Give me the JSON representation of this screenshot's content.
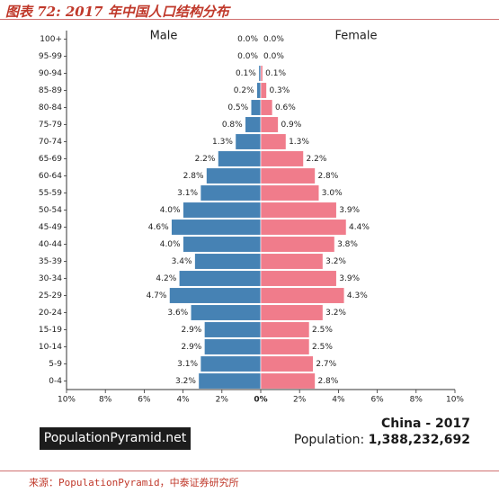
{
  "figure_title": "图表 72: 2017 年中国人口结构分布",
  "source_note": "来源：PopulationPyramid，中泰证券研究所",
  "brand_label": "PopulationPyramid.net",
  "country_label": "China - 2017",
  "population_label": "Population:",
  "population_value": "1,388,232,692",
  "colors": {
    "male": "#4682b4",
    "female": "#f07c8b"
  },
  "chart_data": {
    "type": "bar",
    "orientation": "horizontal-pyramid",
    "categories": [
      "100+",
      "95-99",
      "90-94",
      "85-89",
      "80-84",
      "75-79",
      "70-74",
      "65-69",
      "60-64",
      "55-59",
      "50-54",
      "45-49",
      "40-44",
      "35-39",
      "30-34",
      "25-29",
      "20-24",
      "15-19",
      "10-14",
      "5-9",
      "0-4"
    ],
    "series": [
      {
        "name": "Male",
        "values": [
          0.0,
          0.0,
          0.1,
          0.2,
          0.5,
          0.8,
          1.3,
          2.2,
          2.8,
          3.1,
          4.0,
          4.6,
          4.0,
          3.4,
          4.2,
          4.7,
          3.6,
          2.9,
          2.9,
          3.1,
          3.2
        ],
        "labels": [
          "0.0%",
          "0.0%",
          "0.1%",
          "0.2%",
          "0.5%",
          "0.8%",
          "1.3%",
          "2.2%",
          "2.8%",
          "3.1%",
          "4.0%",
          "4.6%",
          "4.0%",
          "3.4%",
          "4.2%",
          "4.7%",
          "3.6%",
          "2.9%",
          "2.9%",
          "3.1%",
          "3.2%"
        ]
      },
      {
        "name": "Female",
        "values": [
          0.0,
          0.0,
          0.1,
          0.3,
          0.6,
          0.9,
          1.3,
          2.2,
          2.8,
          3.0,
          3.9,
          4.4,
          3.8,
          3.2,
          3.9,
          4.3,
          3.2,
          2.5,
          2.5,
          2.7,
          2.8
        ],
        "labels": [
          "0.0%",
          "0.0%",
          "0.1%",
          "0.3%",
          "0.6%",
          "0.9%",
          "1.3%",
          "2.2%",
          "2.8%",
          "3.0%",
          "3.9%",
          "4.4%",
          "3.8%",
          "3.2%",
          "3.9%",
          "4.3%",
          "3.2%",
          "2.5%",
          "2.5%",
          "2.7%",
          "2.8%"
        ]
      }
    ],
    "xlim": [
      -10,
      10
    ],
    "x_ticks": [
      -10,
      -8,
      -6,
      -4,
      -2,
      0,
      2,
      4,
      6,
      8,
      10
    ],
    "x_tick_labels": [
      "10%",
      "8%",
      "6%",
      "4%",
      "2%",
      "0%",
      "2%",
      "4%",
      "6%",
      "8%",
      "10%"
    ],
    "grid": false
  }
}
